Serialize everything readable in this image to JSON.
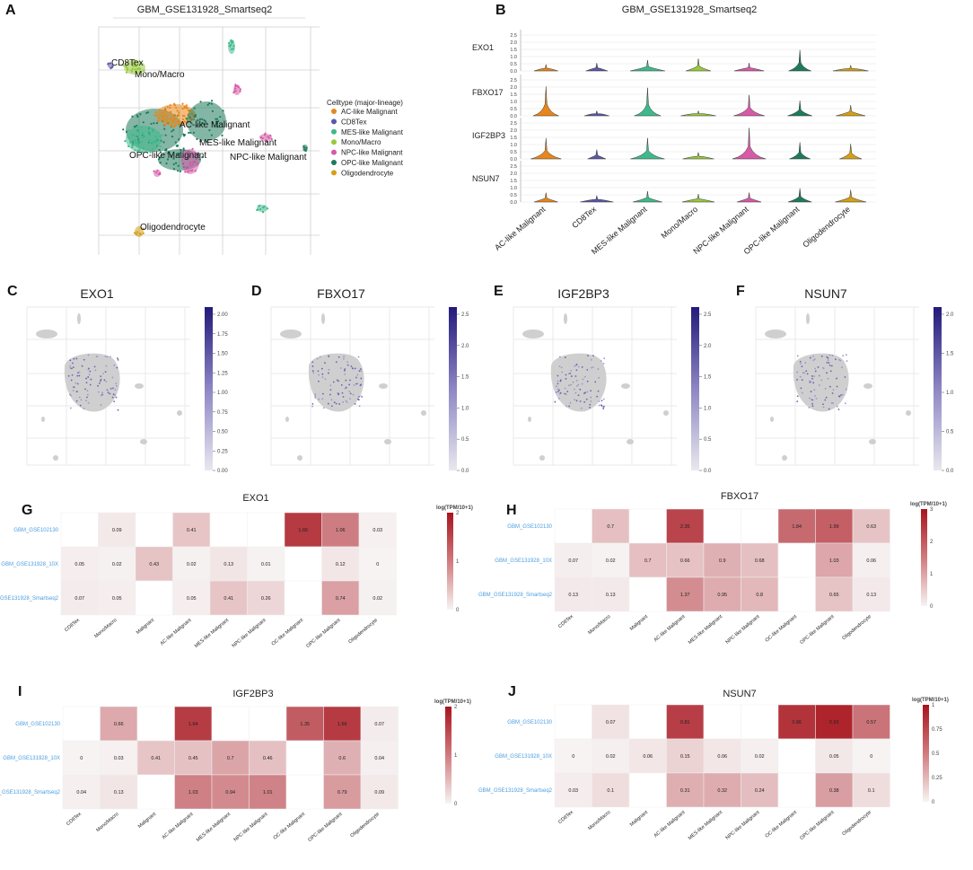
{
  "panels": {
    "A": {
      "label": "A",
      "title": "GBM_GSE131928_Smartseq2",
      "legend_title": "Celltype (major-lineage)",
      "legend": [
        {
          "name": "AC-like Malignant",
          "color": "#e8861a"
        },
        {
          "name": "CD8Tex",
          "color": "#5b58a8"
        },
        {
          "name": "MES-like Malignant",
          "color": "#3fb98b"
        },
        {
          "name": "Mono/Macro",
          "color": "#98c93c"
        },
        {
          "name": "NPC-like Malignant",
          "color": "#d65aa8"
        },
        {
          "name": "OPC-like Malignant",
          "color": "#1f7a5c"
        },
        {
          "name": "Oligodendrocyte",
          "color": "#d4a017"
        }
      ],
      "cluster_labels": [
        "CD8Tex",
        "Mono/Macro",
        "AC-like Malignant",
        "MES-like Malignant",
        "OPC-like Malignant",
        "NPC-like Malignant",
        "Oligodendrocyte"
      ]
    },
    "B": {
      "label": "B",
      "title": "GBM_GSE131928_Smartseq2",
      "genes": [
        "EXO1",
        "FBXO17",
        "IGF2BP3",
        "NSUN7"
      ],
      "y_ticks": [
        "0.0",
        "0.5",
        "1.0",
        "1.5",
        "2.0",
        "2.5"
      ],
      "celltypes": [
        "AC-like Malignant",
        "CD8Tex",
        "MES-like Malignant",
        "Mono/Macro",
        "NPC-like Malignant",
        "OPC-like Malignant",
        "Oligodendrocyte"
      ],
      "colors": [
        "#e8861a",
        "#5b58a8",
        "#3fb98b",
        "#98c93c",
        "#d65aa8",
        "#1f7a5c",
        "#d4a017"
      ]
    },
    "feature_plots": [
      {
        "label": "C",
        "gene": "EXO1",
        "cb_ticks": [
          "0.00",
          "0.25",
          "0.50",
          "0.75",
          "1.00",
          "1.25",
          "1.50",
          "1.75",
          "2.00"
        ]
      },
      {
        "label": "D",
        "gene": "FBXO17",
        "cb_ticks": [
          "0.0",
          "0.5",
          "1.0",
          "1.5",
          "2.0",
          "2.5"
        ]
      },
      {
        "label": "E",
        "gene": "IGF2BP3",
        "cb_ticks": [
          "0.0",
          "0.5",
          "1.0",
          "1.5",
          "2.0",
          "2.5"
        ]
      },
      {
        "label": "F",
        "gene": "NSUN7",
        "cb_ticks": [
          "0.0",
          "0.5",
          "1.0",
          "1.5",
          "2.0"
        ]
      }
    ]
  },
  "chart_data": [
    {
      "type": "heatmap",
      "panel": "G",
      "title": "EXO1",
      "colorbar_title": "log(TPM/10+1)",
      "rows": [
        "GBM_GSE102130",
        "GBM_GSE131928_10X",
        "GBM_GSE131928_Smartseq2"
      ],
      "columns": [
        "CD8Tex",
        "Mono/Macro",
        "Malignant",
        "AC-like Malignant",
        "MES-like Malignant",
        "NPC-like Malignant",
        "OC-like Malignant",
        "OPC-like Malignant",
        "Oligodendrocyte"
      ],
      "values": [
        [
          null,
          0.09,
          null,
          0.41,
          null,
          null,
          1.66,
          1.06,
          0.03
        ],
        [
          0.05,
          0.02,
          0.43,
          0.02,
          0.13,
          0.01,
          null,
          0.12,
          0
        ],
        [
          0.07,
          0.05,
          null,
          0.05,
          0.41,
          0.26,
          null,
          0.74,
          0.02
        ]
      ],
      "vmax": 2,
      "cb_ticks": [
        "2",
        "1",
        "0"
      ]
    },
    {
      "type": "heatmap",
      "panel": "H",
      "title": "FBXO17",
      "colorbar_title": "log(TPM/10+1)",
      "rows": [
        "GBM_GSE102130",
        "GBM_GSE131928_10X",
        "GBM_GSE131928_Smartseq2"
      ],
      "columns": [
        "CD8Tex",
        "Mono/Macro",
        "Malignant",
        "AC-like Malignant",
        "MES-like Malignant",
        "NPC-like Malignant",
        "OC-like Malignant",
        "OPC-like Malignant",
        "Oligodendrocyte"
      ],
      "values": [
        [
          null,
          0.7,
          null,
          2.35,
          null,
          null,
          1.84,
          1.99,
          0.63
        ],
        [
          0.07,
          0.02,
          0.7,
          0.66,
          0.9,
          0.68,
          null,
          1.03,
          0.06
        ],
        [
          0.13,
          0.13,
          null,
          1.37,
          0.95,
          0.8,
          null,
          0.65,
          0.13
        ]
      ],
      "vmax": 3,
      "cb_ticks": [
        "3",
        "2",
        "1",
        "0"
      ]
    },
    {
      "type": "heatmap",
      "panel": "I",
      "title": "IGF2BP3",
      "colorbar_title": "log(TPM/10+1)",
      "rows": [
        "GBM_GSE102130",
        "GBM_GSE131928_10X",
        "GBM_GSE131928_Smartseq2"
      ],
      "columns": [
        "CD8Tex",
        "Mono/Macro",
        "Malignant",
        "AC-like Malignant",
        "MES-like Malignant",
        "NPC-like Malignant",
        "OC-like Malignant",
        "OPC-like Malignant",
        "Oligodendrocyte"
      ],
      "values": [
        [
          null,
          0.66,
          null,
          1.64,
          null,
          null,
          1.35,
          1.66,
          0.07
        ],
        [
          0,
          0.03,
          0.41,
          0.45,
          0.7,
          0.46,
          null,
          0.6,
          0.04
        ],
        [
          0.04,
          0.13,
          null,
          1.03,
          0.94,
          1.01,
          null,
          0.79,
          0.09
        ]
      ],
      "vmax": 2,
      "cb_ticks": [
        "2",
        "1",
        "0"
      ]
    },
    {
      "type": "heatmap",
      "panel": "J",
      "title": "NSUN7",
      "colorbar_title": "log(TPM/10+1)",
      "rows": [
        "GBM_GSE102130",
        "GBM_GSE131928_10X",
        "GBM_GSE131928_Smartseq2"
      ],
      "columns": [
        "CD8Tex",
        "Mono/Macro",
        "Malignant",
        "AC-like Malignant",
        "MES-like Malignant",
        "NPC-like Malignant",
        "OC-like Malignant",
        "OPC-like Malignant",
        "Oligodendrocyte"
      ],
      "values": [
        [
          null,
          0.07,
          null,
          0.81,
          null,
          null,
          0.86,
          0.93,
          0.57
        ],
        [
          0,
          0.02,
          0.06,
          0.15,
          0.06,
          0.02,
          null,
          0.05,
          0
        ],
        [
          0.03,
          0.1,
          null,
          0.31,
          0.32,
          0.24,
          null,
          0.38,
          0.1
        ]
      ],
      "vmax": 1,
      "cb_ticks": [
        "1",
        "0.75",
        "0.5",
        "0.25",
        "0"
      ]
    }
  ]
}
